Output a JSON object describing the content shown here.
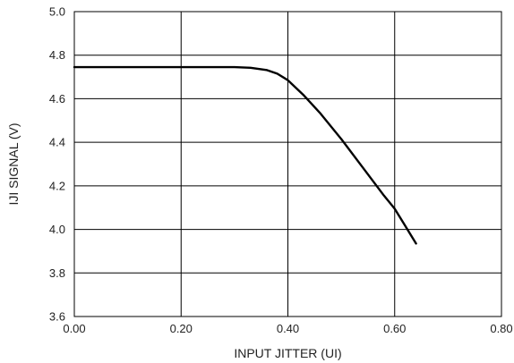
{
  "chart_data": {
    "type": "line",
    "title": "",
    "xlabel": "INPUT JITTER (UI)",
    "ylabel": "IJI SIGNAL (V)",
    "xlim": [
      0.0,
      0.8
    ],
    "ylim": [
      3.6,
      5.0
    ],
    "xticks": [
      "0.00",
      "0.20",
      "0.40",
      "0.60",
      "0.80"
    ],
    "yticks": [
      "3.6",
      "3.8",
      "4.0",
      "4.2",
      "4.4",
      "4.6",
      "4.8",
      "5.0"
    ],
    "grid": true,
    "series": [
      {
        "x": [
          0.0,
          0.1,
          0.2,
          0.3,
          0.33,
          0.36,
          0.38,
          0.4,
          0.43,
          0.46,
          0.5,
          0.54,
          0.58,
          0.6,
          0.62,
          0.64
        ],
        "y": [
          4.745,
          4.745,
          4.745,
          4.745,
          4.742,
          4.732,
          4.715,
          4.685,
          4.615,
          4.535,
          4.415,
          4.285,
          4.155,
          4.095,
          4.015,
          3.935
        ]
      }
    ],
    "colors": {
      "line": "#000000",
      "grid": "#000000",
      "text": "#222222"
    }
  }
}
